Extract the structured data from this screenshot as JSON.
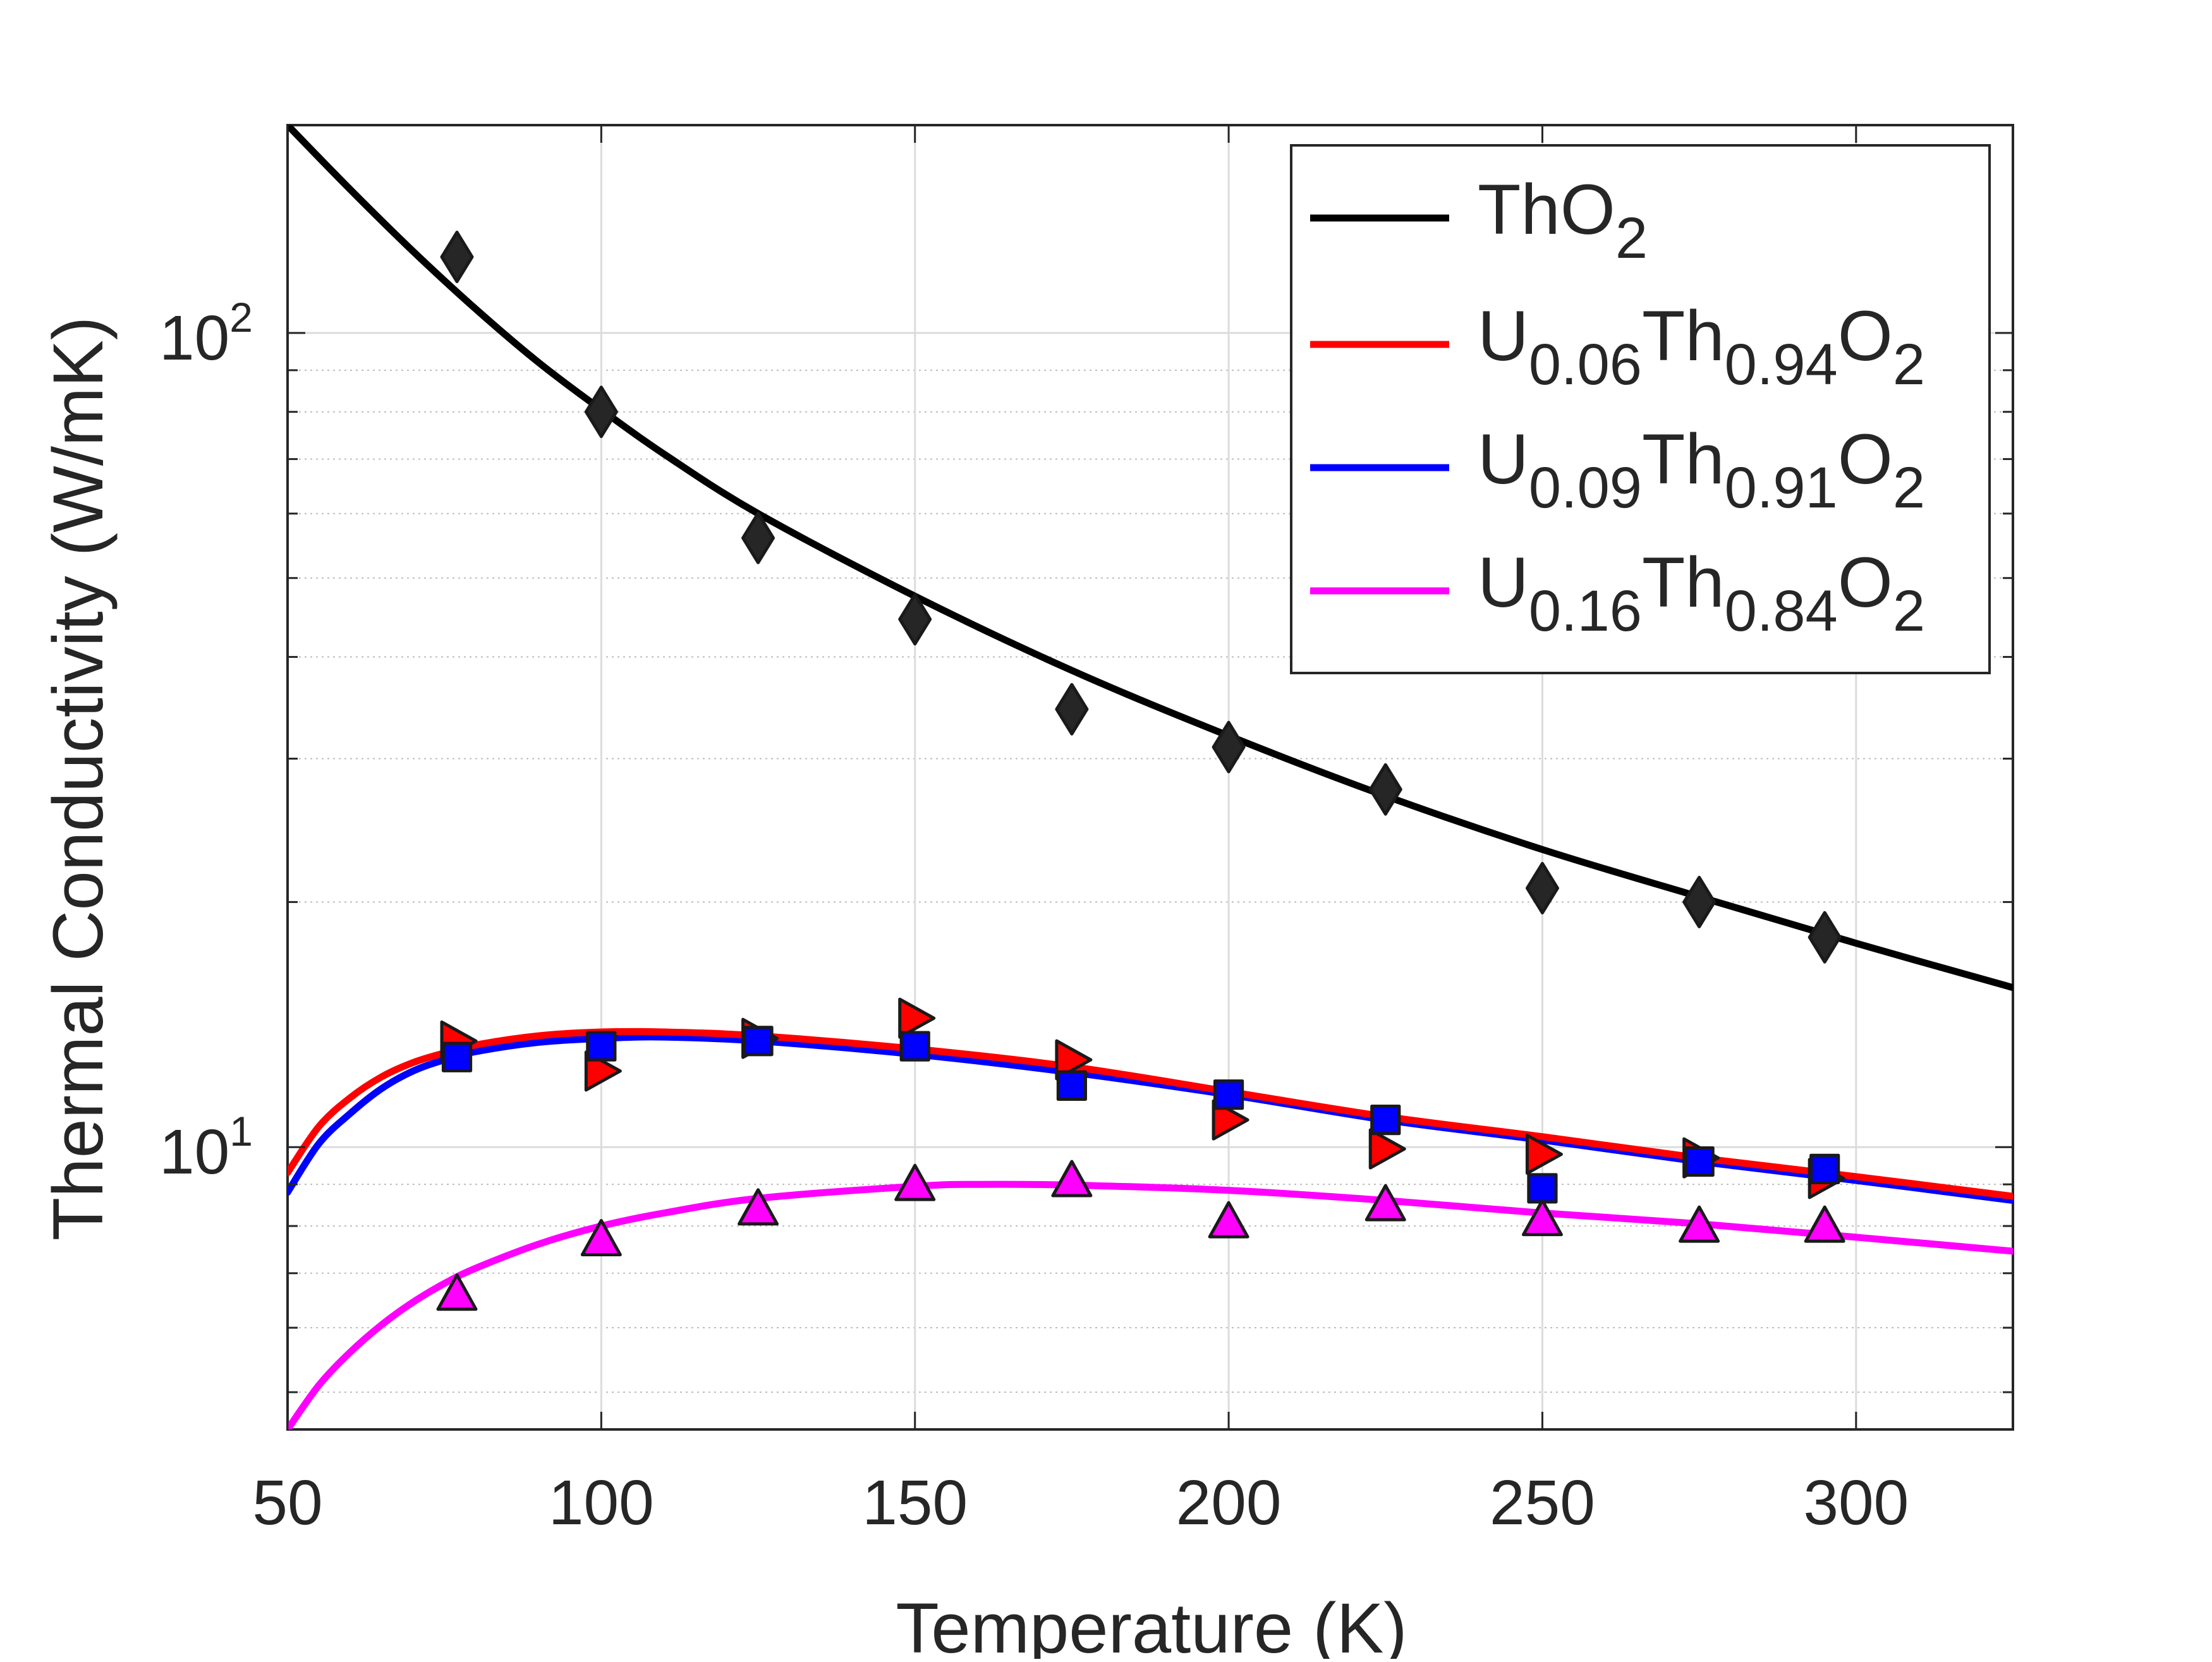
{
  "chart_data": {
    "type": "line",
    "title": "",
    "xlabel": "Temperature (K)",
    "ylabel": "Thermal Conductivity (W/mK)",
    "xlim": [
      50,
      325
    ],
    "ylim": [
      4.5,
      180
    ],
    "yscale": "log",
    "grid": true,
    "x_ticks": [
      50,
      100,
      150,
      200,
      250,
      300
    ],
    "x_tick_labels": [
      "50",
      "100",
      "150",
      "200",
      "250",
      "300"
    ],
    "y_ticks": [
      {
        "value": 10,
        "base": "10",
        "exp": "1"
      },
      {
        "value": 100,
        "base": "10",
        "exp": "2"
      }
    ],
    "legend_position": "top-right",
    "series": [
      {
        "name": "ThO2",
        "label_parts": [
          {
            "t": "ThO"
          },
          {
            "t": "2",
            "sub": true
          }
        ],
        "color": "#000000",
        "marker": "diamond",
        "marker_color": "#262626",
        "fit_x": [
          50,
          60,
          70,
          80,
          90,
          100,
          110,
          125,
          150,
          175,
          200,
          225,
          250,
          275,
          300,
          325
        ],
        "fit_y": [
          180,
          150,
          126,
          107,
          92,
          80.5,
          71,
          60,
          47.5,
          38.5,
          32,
          27,
          23.2,
          20.3,
          17.8,
          15.7
        ],
        "points_x": [
          77,
          100,
          125,
          150,
          175,
          200,
          225,
          250,
          275,
          295
        ],
        "points_y": [
          124,
          80,
          56,
          44.5,
          34.5,
          31,
          27.5,
          20.8,
          20,
          18.1
        ]
      },
      {
        "name": "U0.06Th0.94O2",
        "label_parts": [
          {
            "t": "U"
          },
          {
            "t": "0.06",
            "sub": true
          },
          {
            "t": "Th"
          },
          {
            "t": "0.94",
            "sub": true
          },
          {
            "t": "O"
          },
          {
            "t": "2",
            "sub": true
          }
        ],
        "color": "#ff0000",
        "marker": "triangle-right",
        "marker_color": "#ff0000",
        "fit_x": [
          50,
          55,
          60,
          65,
          70,
          75,
          80,
          90,
          100,
          110,
          125,
          150,
          175,
          200,
          225,
          250,
          275,
          300,
          325
        ],
        "fit_y": [
          9.3,
          10.6,
          11.5,
          12.2,
          12.7,
          13.05,
          13.35,
          13.7,
          13.85,
          13.85,
          13.7,
          13.2,
          12.55,
          11.7,
          10.9,
          10.3,
          9.7,
          9.2,
          8.7
        ],
        "points_x": [
          77,
          100,
          125,
          150,
          175,
          200,
          225,
          250,
          275,
          295
        ],
        "points_y": [
          13.5,
          12.4,
          13.6,
          14.4,
          12.8,
          10.8,
          9.95,
          9.8,
          9.7,
          9.15
        ]
      },
      {
        "name": "U0.09Th0.91O2",
        "label_parts": [
          {
            "t": "U"
          },
          {
            "t": "0.09",
            "sub": true
          },
          {
            "t": "Th"
          },
          {
            "t": "0.91",
            "sub": true
          },
          {
            "t": "O"
          },
          {
            "t": "2",
            "sub": true
          }
        ],
        "color": "#0000ff",
        "marker": "square",
        "marker_color": "#0000ff",
        "fit_x": [
          50,
          55,
          60,
          65,
          70,
          75,
          80,
          90,
          100,
          110,
          125,
          150,
          175,
          200,
          225,
          250,
          275,
          300,
          325
        ],
        "fit_y": [
          8.8,
          10.1,
          11.0,
          11.8,
          12.4,
          12.8,
          13.1,
          13.45,
          13.6,
          13.65,
          13.5,
          13.0,
          12.35,
          11.6,
          10.8,
          10.2,
          9.6,
          9.1,
          8.6
        ],
        "points_x": [
          77,
          100,
          125,
          150,
          175,
          200,
          225,
          250,
          275,
          295
        ],
        "points_y": [
          12.9,
          13.3,
          13.5,
          13.3,
          11.9,
          11.6,
          10.8,
          8.9,
          9.6,
          9.4
        ]
      },
      {
        "name": "U0.16Th0.84O2",
        "label_parts": [
          {
            "t": "U"
          },
          {
            "t": "0.16",
            "sub": true
          },
          {
            "t": "Th"
          },
          {
            "t": "0.84",
            "sub": true
          },
          {
            "t": "O"
          },
          {
            "t": "2",
            "sub": true
          }
        ],
        "color": "#ff00ff",
        "marker": "triangle-up",
        "marker_color": "#ff00ff",
        "fit_x": [
          50,
          55,
          60,
          65,
          70,
          75,
          80,
          90,
          100,
          110,
          125,
          150,
          160,
          175,
          200,
          225,
          250,
          275,
          300,
          325
        ],
        "fit_y": [
          4.5,
          5.1,
          5.6,
          6.05,
          6.45,
          6.8,
          7.1,
          7.6,
          8.0,
          8.3,
          8.65,
          8.95,
          9.0,
          8.98,
          8.85,
          8.6,
          8.3,
          8.05,
          7.75,
          7.45
        ],
        "points_x": [
          77,
          100,
          125,
          150,
          175,
          200,
          225,
          250,
          275,
          295
        ],
        "points_y": [
          6.6,
          7.7,
          8.4,
          9.0,
          9.1,
          8.1,
          8.5,
          8.15,
          8.0,
          8.0
        ]
      }
    ]
  }
}
